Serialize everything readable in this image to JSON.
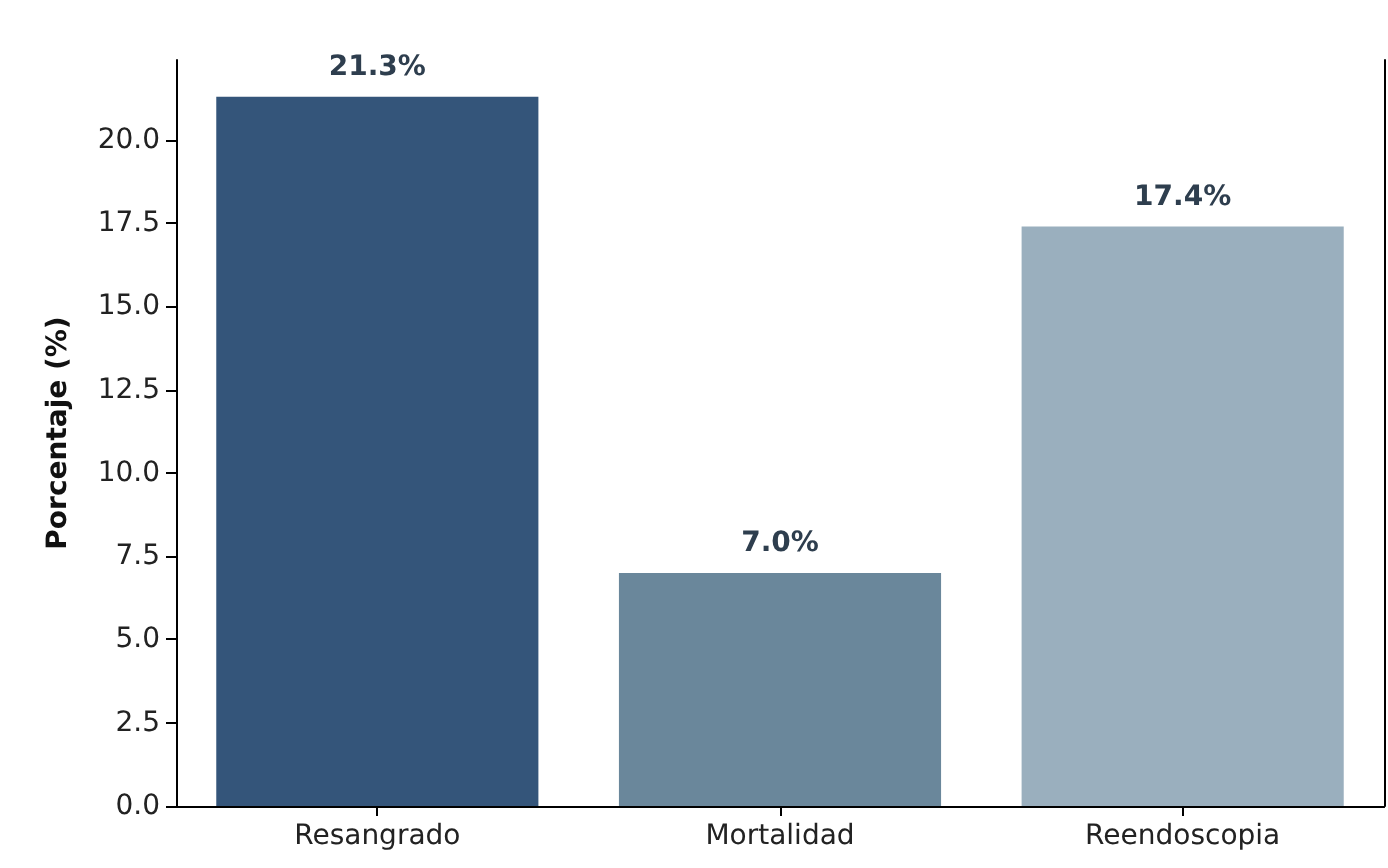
{
  "chart_data": {
    "type": "bar",
    "ylabel": "Porcentaje (%)",
    "categories": [
      "Resangrado",
      "Mortalidad",
      "Reendoscopia"
    ],
    "values": [
      21.3,
      7.0,
      17.4
    ],
    "colors": [
      "#34557a",
      "#6a879b",
      "#9aafbe"
    ],
    "value_labels": [
      "21.3%",
      "7.0%",
      "17.4%"
    ],
    "ylim": [
      0,
      22.4
    ],
    "yticks": [
      {
        "value": 0,
        "label": "0.0"
      },
      {
        "value": 2.5,
        "label": "2.5"
      },
      {
        "value": 5,
        "label": "5.0"
      },
      {
        "value": 7.5,
        "label": "7.5"
      },
      {
        "value": 10,
        "label": "10.0"
      },
      {
        "value": 12.5,
        "label": "12.5"
      },
      {
        "value": 15,
        "label": "15.0"
      },
      {
        "value": 17.5,
        "label": "17.5"
      },
      {
        "value": 20,
        "label": "20.0"
      }
    ],
    "grid": false
  }
}
